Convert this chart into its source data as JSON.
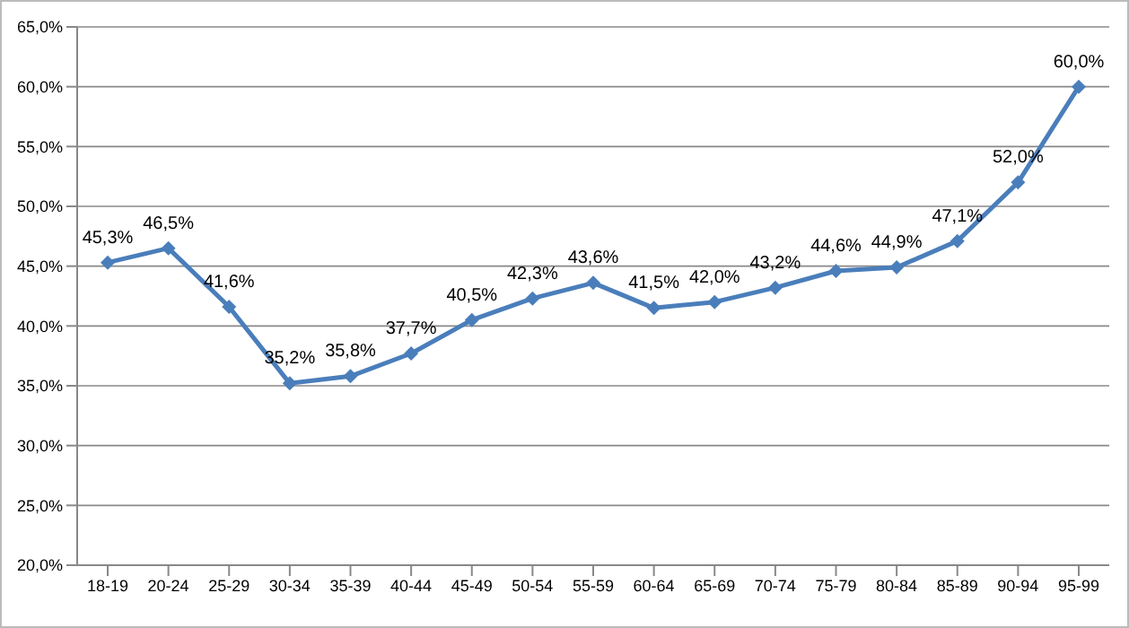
{
  "chart_data": {
    "type": "line",
    "categories": [
      "18-19",
      "20-24",
      "25-29",
      "30-34",
      "35-39",
      "40-44",
      "45-49",
      "50-54",
      "55-59",
      "60-64",
      "65-69",
      "70-74",
      "75-79",
      "80-84",
      "85-89",
      "90-94",
      "95-99"
    ],
    "series": [
      {
        "color": "#4a7ebb",
        "values": [
          45.3,
          46.5,
          41.6,
          35.2,
          35.8,
          37.7,
          40.5,
          42.3,
          43.6,
          41.5,
          42.0,
          43.2,
          44.6,
          44.9,
          47.1,
          52.0,
          60.0
        ],
        "value_labels": [
          "45,3%",
          "46,5%",
          "41,6%",
          "35,2%",
          "35,8%",
          "37,7%",
          "40,5%",
          "42,3%",
          "43,6%",
          "41,5%",
          "42,0%",
          "43,2%",
          "44,6%",
          "44,9%",
          "47,1%",
          "52,0%",
          "60,0%"
        ]
      }
    ],
    "ylim": [
      20,
      65
    ],
    "yticks": [
      {
        "value": 20,
        "label": "20,0%"
      },
      {
        "value": 25,
        "label": "25,0%"
      },
      {
        "value": 30,
        "label": "30,0%"
      },
      {
        "value": 35,
        "label": "35,0%"
      },
      {
        "value": 40,
        "label": "40,0%"
      },
      {
        "value": 45,
        "label": "45,0%"
      },
      {
        "value": 50,
        "label": "50,0%"
      },
      {
        "value": 55,
        "label": "55,0%"
      },
      {
        "value": 60,
        "label": "60,0%"
      },
      {
        "value": 65,
        "label": "65,0%"
      }
    ],
    "grid": "y",
    "marker": "diamond",
    "line_style": "solid",
    "legend": false
  }
}
